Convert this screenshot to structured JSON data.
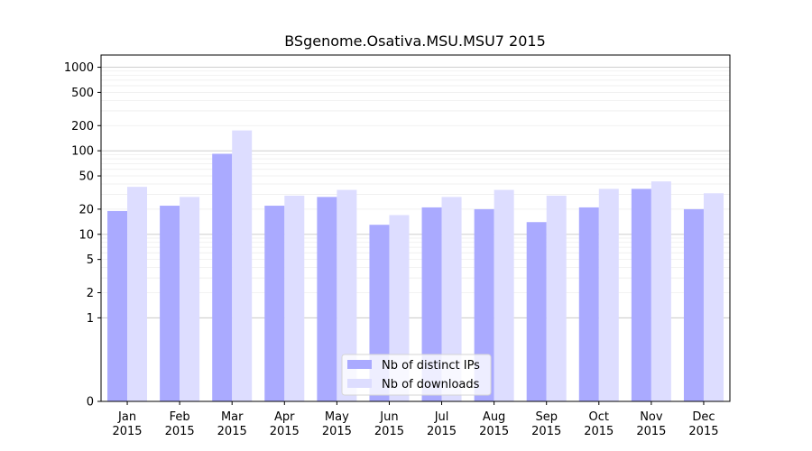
{
  "chart_data": {
    "type": "bar",
    "title": "BSgenome.Osativa.MSU.MSU7 2015",
    "xlabel": "",
    "ylabel": "",
    "y_scale": "symlog",
    "ylim": [
      0,
      1400
    ],
    "y_ticks": [
      0,
      1,
      2,
      5,
      10,
      20,
      50,
      100,
      200,
      500,
      1000
    ],
    "y_tick_labels": [
      "0",
      "1",
      "2",
      "5",
      "10",
      "20",
      "50",
      "100",
      "200",
      "500",
      "1000"
    ],
    "grid": "horizontal",
    "legend_position": "bottom-center",
    "categories": [
      [
        "Jan",
        "2015"
      ],
      [
        "Feb",
        "2015"
      ],
      [
        "Mar",
        "2015"
      ],
      [
        "Apr",
        "2015"
      ],
      [
        "May",
        "2015"
      ],
      [
        "Jun",
        "2015"
      ],
      [
        "Jul",
        "2015"
      ],
      [
        "Aug",
        "2015"
      ],
      [
        "Sep",
        "2015"
      ],
      [
        "Oct",
        "2015"
      ],
      [
        "Nov",
        "2015"
      ],
      [
        "Dec",
        "2015"
      ]
    ],
    "series": [
      {
        "name": "Nb of distinct IPs",
        "color": "#aaaaff",
        "values": [
          19,
          22,
          92,
          22,
          28,
          13,
          21,
          20,
          14,
          21,
          35,
          20
        ]
      },
      {
        "name": "Nb of downloads",
        "color": "#ddddff",
        "values": [
          37,
          28,
          175,
          29,
          34,
          17,
          28,
          34,
          29,
          35,
          43,
          31
        ]
      }
    ]
  }
}
